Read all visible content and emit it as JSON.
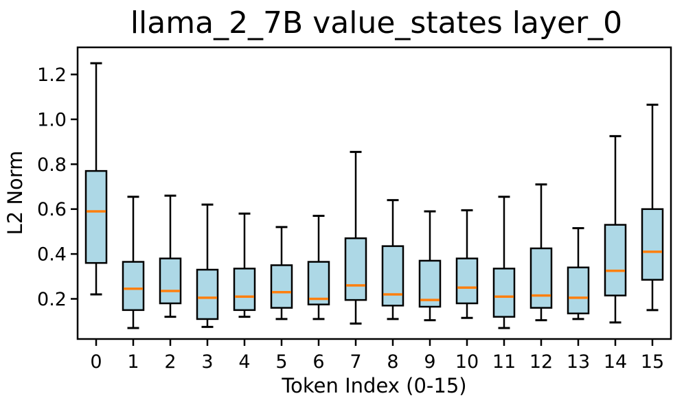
{
  "chart_data": {
    "type": "boxplot",
    "title": "llama_2_7B value_states layer_0",
    "xlabel": "Token Index (0-15)",
    "ylabel": "L2 Norm",
    "categories": [
      "0",
      "1",
      "2",
      "3",
      "4",
      "5",
      "6",
      "7",
      "8",
      "9",
      "10",
      "11",
      "12",
      "13",
      "14",
      "15"
    ],
    "yticks": [
      0.2,
      0.4,
      0.6,
      0.8,
      1.0,
      1.2
    ],
    "ytick_labels": [
      "0.2",
      "0.4",
      "0.6",
      "0.8",
      "1.0",
      "1.2"
    ],
    "ylim": [
      0.02,
      1.33
    ],
    "legend": "none",
    "grid": false,
    "colors": {
      "box_fill": "#ADD8E6",
      "box_edge": "#000000",
      "whisker": "#000000",
      "median": "#FF7F0E",
      "axis": "#000000",
      "background": "#FFFFFF"
    },
    "boxes": [
      {
        "token": "0",
        "whisker_low": 0.22,
        "q1": 0.36,
        "median": 0.59,
        "q3": 0.77,
        "whisker_high": 1.25
      },
      {
        "token": "1",
        "whisker_low": 0.07,
        "q1": 0.15,
        "median": 0.245,
        "q3": 0.365,
        "whisker_high": 0.655
      },
      {
        "token": "2",
        "whisker_low": 0.12,
        "q1": 0.18,
        "median": 0.235,
        "q3": 0.38,
        "whisker_high": 0.66
      },
      {
        "token": "3",
        "whisker_low": 0.075,
        "q1": 0.11,
        "median": 0.205,
        "q3": 0.33,
        "whisker_high": 0.62
      },
      {
        "token": "4",
        "whisker_low": 0.12,
        "q1": 0.15,
        "median": 0.21,
        "q3": 0.335,
        "whisker_high": 0.58
      },
      {
        "token": "5",
        "whisker_low": 0.11,
        "q1": 0.16,
        "median": 0.23,
        "q3": 0.35,
        "whisker_high": 0.52
      },
      {
        "token": "6",
        "whisker_low": 0.11,
        "q1": 0.175,
        "median": 0.2,
        "q3": 0.365,
        "whisker_high": 0.57
      },
      {
        "token": "7",
        "whisker_low": 0.09,
        "q1": 0.195,
        "median": 0.26,
        "q3": 0.47,
        "whisker_high": 0.855
      },
      {
        "token": "8",
        "whisker_low": 0.11,
        "q1": 0.17,
        "median": 0.22,
        "q3": 0.435,
        "whisker_high": 0.64
      },
      {
        "token": "9",
        "whisker_low": 0.105,
        "q1": 0.165,
        "median": 0.195,
        "q3": 0.37,
        "whisker_high": 0.59
      },
      {
        "token": "10",
        "whisker_low": 0.115,
        "q1": 0.18,
        "median": 0.25,
        "q3": 0.38,
        "whisker_high": 0.595
      },
      {
        "token": "11",
        "whisker_low": 0.07,
        "q1": 0.12,
        "median": 0.21,
        "q3": 0.335,
        "whisker_high": 0.655
      },
      {
        "token": "12",
        "whisker_low": 0.105,
        "q1": 0.16,
        "median": 0.215,
        "q3": 0.425,
        "whisker_high": 0.71
      },
      {
        "token": "13",
        "whisker_low": 0.11,
        "q1": 0.135,
        "median": 0.205,
        "q3": 0.34,
        "whisker_high": 0.515
      },
      {
        "token": "14",
        "whisker_low": 0.095,
        "q1": 0.215,
        "median": 0.325,
        "q3": 0.53,
        "whisker_high": 0.925
      },
      {
        "token": "15",
        "whisker_low": 0.15,
        "q1": 0.285,
        "median": 0.41,
        "q3": 0.6,
        "whisker_high": 1.065
      }
    ]
  }
}
